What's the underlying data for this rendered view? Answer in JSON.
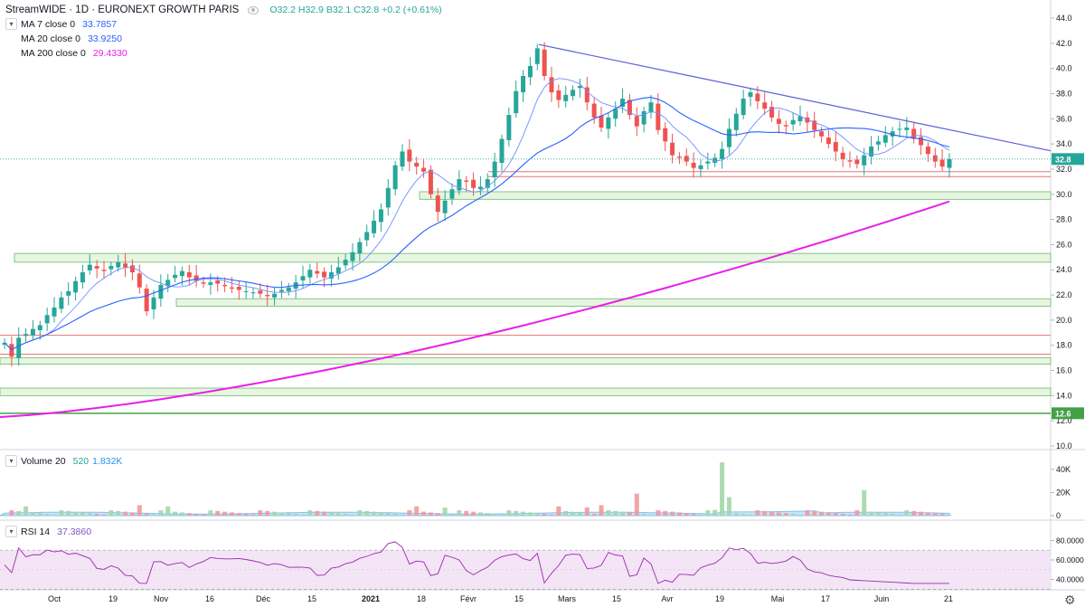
{
  "header": {
    "symbol": "StreamWIDE · 1D · EURONEXT GROWTH PARIS",
    "ohlc": "O32.2  H32.9  B32.1  C32.8  +0.2 (+0.61%)",
    "ohlc_color": "#26a69a"
  },
  "legend": [
    {
      "label": "MA 7 close 0",
      "value": "33.7857",
      "color": "#2962ff"
    },
    {
      "label": "MA 20 close 0",
      "value": "33.9250",
      "color": "#2962ff"
    },
    {
      "label": "MA 200 close 0",
      "value": "29.4330",
      "color": "#e91ee9"
    }
  ],
  "volume_label": {
    "label": "Volume 20",
    "v1": "520",
    "v2": "1.832K",
    "v1_color": "#26a69a",
    "v2_color": "#2196f3"
  },
  "rsi_label": {
    "label": "RSI 14",
    "value": "37.3860",
    "color": "#7e57c2"
  },
  "colors": {
    "up": "#26a69a",
    "down": "#ef5350",
    "ma_short": "#2962ff",
    "ma_long": "#e91ee9",
    "trendline": "#5b5fd6",
    "zone_fill": "#e8f5e1",
    "zone_border": "#66bb6a",
    "line_red": "#e57373"
  },
  "price_axis": {
    "min": 10,
    "max": 44,
    "ticks": [
      "44.0",
      "42.0",
      "40.0",
      "38.0",
      "36.0",
      "34.0",
      "32.0",
      "30.0",
      "28.0",
      "26.0",
      "24.0",
      "22.0",
      "20.0",
      "18.0",
      "16.0",
      "14.0",
      "12.0",
      "10.0"
    ]
  },
  "volume_axis": {
    "ticks": [
      "40K",
      "20K",
      "0"
    ]
  },
  "rsi_axis": {
    "ticks": [
      "80.0000",
      "60.0000",
      "40.0000"
    ],
    "upper": 70,
    "lower": 30
  },
  "last_price": {
    "value": "32.8",
    "num": 32.8,
    "color": "#26a69a"
  },
  "level_tag": {
    "value": "12.6",
    "num": 12.6,
    "color": "#43a047"
  },
  "time_axis": {
    "labels": [
      "Oct",
      "19",
      "Nov",
      "16",
      "Déc",
      "15",
      "2021",
      "18",
      "Févr",
      "15",
      "Mars",
      "15",
      "Avr",
      "19",
      "Mai",
      "17",
      "Juin",
      "21"
    ],
    "bold_index": 6
  },
  "chart_data": {
    "type": "candlestick",
    "daily_closes": [
      18.2,
      17.1,
      18.6,
      18.9,
      19.3,
      19.6,
      20.4,
      21.0,
      21.8,
      22.3,
      23.1,
      23.8,
      24.4,
      24.1,
      23.9,
      24.3,
      24.6,
      24.2,
      23.8,
      22.6,
      20.7,
      21.8,
      22.8,
      23.2,
      23.6,
      23.9,
      23.4,
      23.1,
      22.9,
      23.0,
      22.9,
      22.7,
      22.5,
      22.4,
      22.3,
      22.2,
      22.1,
      21.9,
      22.1,
      22.4,
      22.6,
      23.0,
      23.5,
      24.0,
      23.7,
      23.4,
      23.8,
      24.2,
      24.8,
      25.4,
      26.2,
      27.0,
      27.9,
      28.8,
      30.5,
      32.3,
      33.4,
      32.6,
      32.2,
      31.8,
      30.0,
      28.6,
      29.5,
      30.4,
      31.2,
      31.0,
      30.5,
      30.6,
      31.2,
      32.6,
      34.4,
      36.3,
      38.2,
      39.4,
      40.2,
      41.6,
      39.4,
      38.1,
      37.5,
      37.9,
      38.3,
      38.6,
      37.3,
      36.1,
      35.3,
      36.1,
      36.8,
      37.6,
      36.3,
      35.4,
      36.6,
      37.3,
      35.1,
      34.2,
      33.1,
      32.9,
      32.6,
      32.1,
      32.3,
      32.6,
      32.9,
      33.6,
      35.2,
      36.4,
      37.6,
      38.1,
      37.4,
      36.8,
      36.1,
      35.6,
      35.4,
      35.9,
      36.2,
      35.7,
      35.1,
      34.6,
      34.0,
      33.4,
      32.8,
      32.6,
      32.4,
      33.1,
      33.8,
      34.2,
      34.7,
      35.0,
      35.2,
      35.3,
      34.4,
      33.9,
      33.2,
      32.6,
      32.2,
      32.8
    ],
    "ma200_start": 12.3,
    "ma200_end": 29.43,
    "trendline": {
      "start_price": 41.9,
      "end_price": 33.6
    },
    "support_zones": [
      [
        24.6,
        25.3
      ],
      [
        21.1,
        21.7
      ],
      [
        16.5,
        17.0
      ],
      [
        29.6,
        30.2
      ],
      [
        14.0,
        14.6
      ]
    ],
    "red_lines": [
      18.8,
      17.3,
      31.8,
      31.4
    ],
    "green_line": 12.6,
    "volume_max": 50
  }
}
